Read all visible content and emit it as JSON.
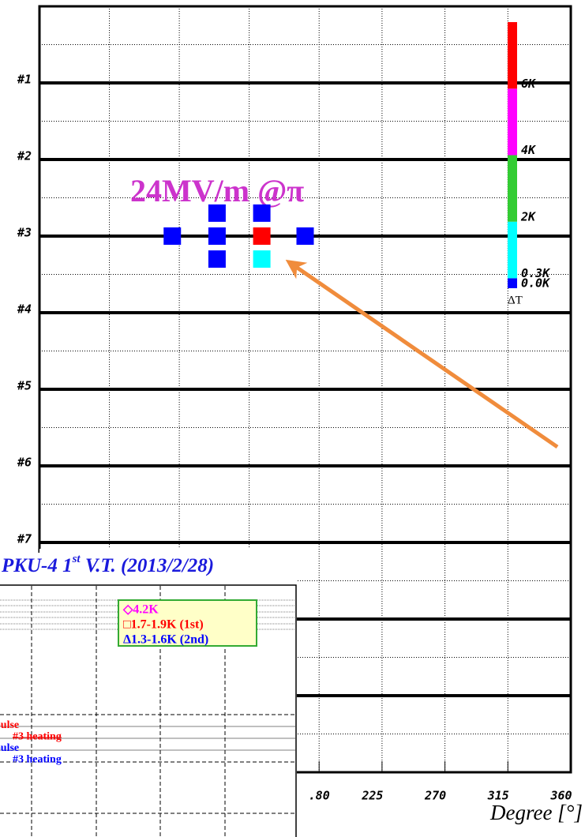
{
  "chart_data": [
    {
      "type": "scatter",
      "xlabel": "Degree [°]",
      "annotation": "24MV/m @π",
      "xlim": [
        -20,
        360
      ],
      "ylim": [
        0,
        10
      ],
      "xticks": [
        {
          "value": 180,
          "label": ".80"
        },
        225,
        270,
        315,
        360
      ],
      "yticks": [
        {
          "value": 1,
          "label": "#1"
        },
        {
          "value": 2,
          "label": "#2"
        },
        {
          "value": 3,
          "label": "#3"
        },
        {
          "value": 4,
          "label": "#4"
        },
        {
          "value": 5,
          "label": "#5"
        },
        {
          "value": 6,
          "label": "#6"
        },
        {
          "value": 7,
          "label": "#7"
        }
      ],
      "major_grid": [
        1,
        2,
        3,
        4,
        5,
        6,
        7,
        8,
        9
      ],
      "minor_grid": [
        0.5,
        1.5,
        2.5,
        3.5,
        4.5,
        5.5,
        6.5,
        7.5,
        8.5,
        9.5
      ],
      "x_grid": [
        30,
        80,
        130,
        180,
        225,
        270,
        315
      ],
      "x": [
        75,
        107,
        107,
        107,
        139,
        139,
        139,
        170
      ],
      "y": [
        3,
        2.7,
        3,
        3.3,
        2.7,
        3,
        3.3,
        3
      ],
      "values": [
        0,
        0,
        0,
        0,
        0,
        7,
        1,
        0
      ],
      "colorbar": {
        "label": "ΔT",
        "bounds": [
          0,
          0.3,
          2,
          4,
          6,
          8
        ],
        "tick_labels": [
          "0.0K",
          "0.3K",
          "2K",
          "4K",
          "6K"
        ],
        "colors": [
          "#0000ff",
          "#00ffff",
          "#33cc33",
          "#ff00ff",
          "#ff0000"
        ]
      }
    },
    {
      "type": "line",
      "title": [
        "PKU-4 1",
        "st",
        " V.T. (2013/2/28)"
      ],
      "series": [
        {
          "name": "◇4.2K",
          "color": "#ff00ff"
        },
        {
          "name": "□1.7-1.9K (1st)",
          "color": "#ff0000"
        },
        {
          "name": "Δ1.3-1.6K (2nd)",
          "color": "#0000ff"
        }
      ],
      "notes": [
        {
          "text": "pulse",
          "color": "#ff0000"
        },
        {
          "text": "#3 heating",
          "color": "#ff0000"
        },
        {
          "text": "pulse",
          "color": "#0000ff"
        },
        {
          "text": "#3 heating",
          "color": "#0000ff"
        }
      ]
    }
  ]
}
